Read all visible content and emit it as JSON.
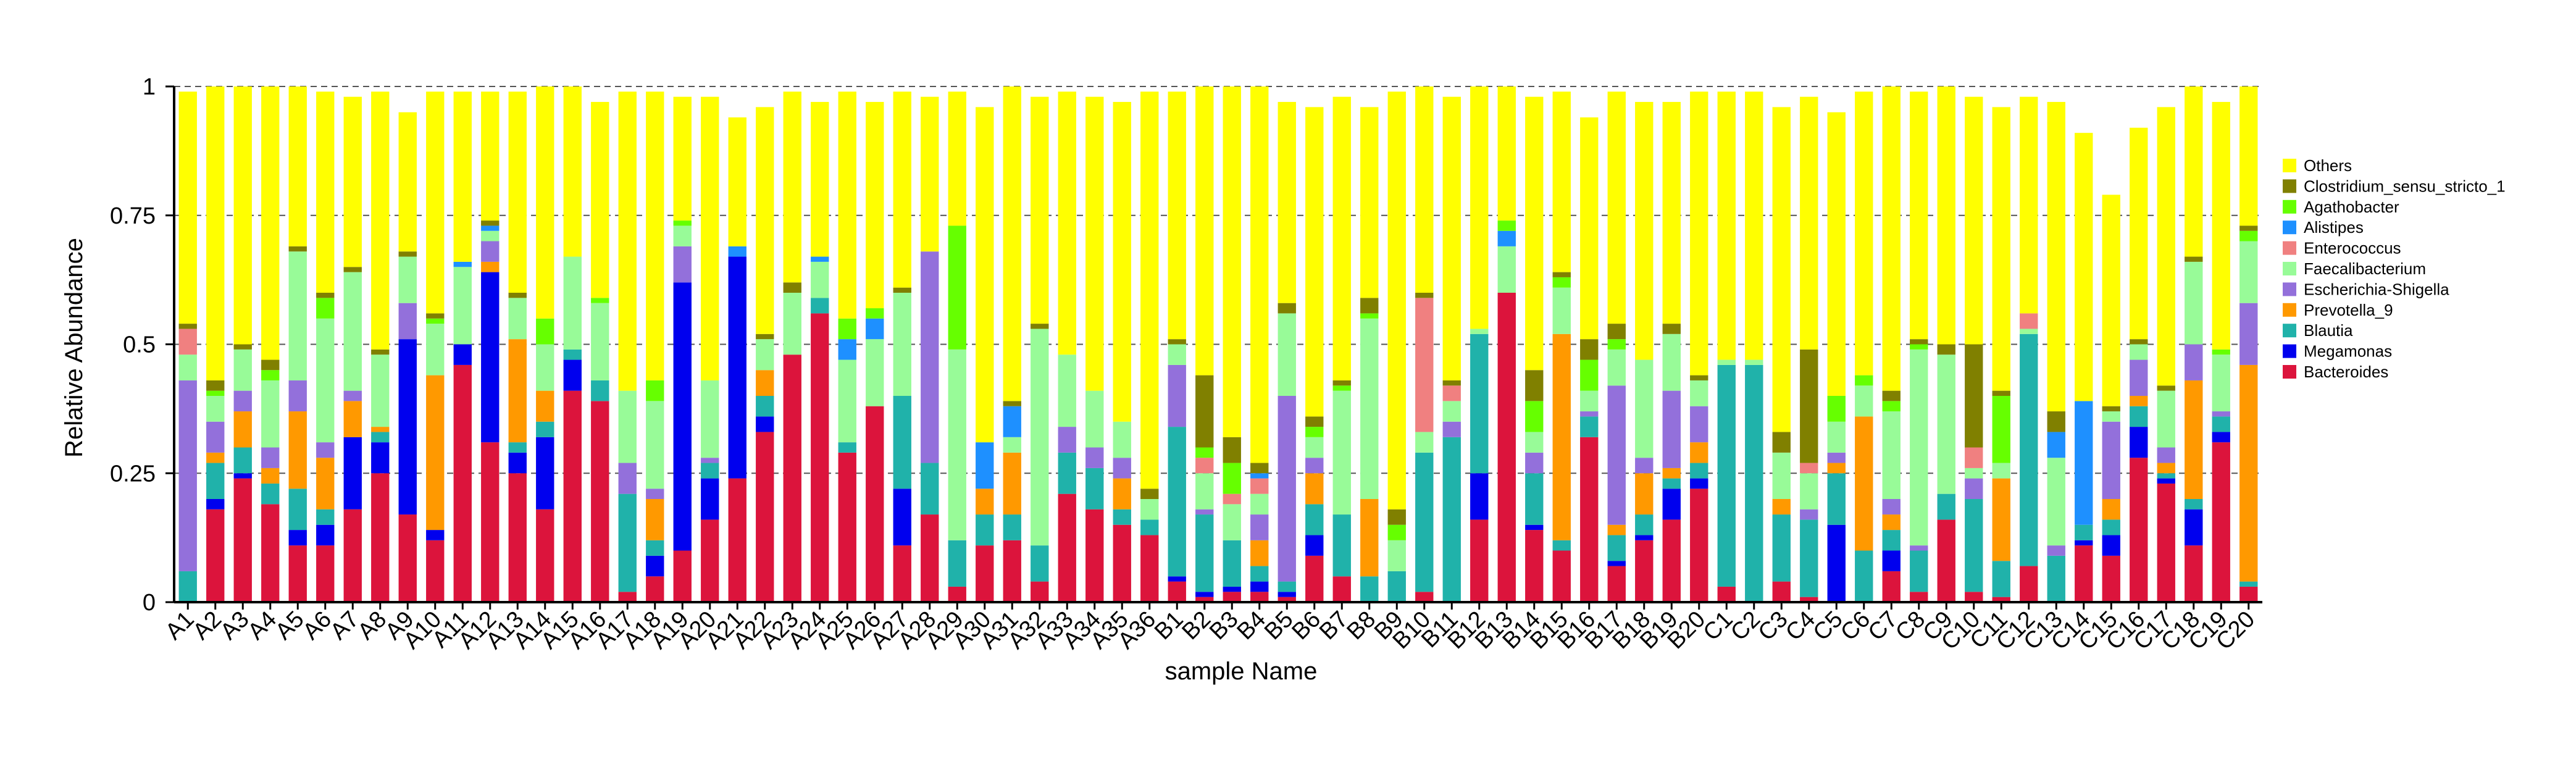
{
  "chart_data": {
    "type": "bar",
    "stacked": true,
    "title": "",
    "xlabel": "sample Name",
    "ylabel": "Relative Abundance",
    "ylim": [
      0,
      1
    ],
    "yticks": [
      "0",
      "0.25",
      "0.5",
      "0.75",
      "1"
    ],
    "grid": "horizontal dashed",
    "legend_position": "right",
    "categories": [
      "A1",
      "A2",
      "A3",
      "A4",
      "A5",
      "A6",
      "A7",
      "A8",
      "A9",
      "A10",
      "A11",
      "A12",
      "A13",
      "A14",
      "A15",
      "A16",
      "A17",
      "A18",
      "A19",
      "A20",
      "A21",
      "A22",
      "A23",
      "A24",
      "A25",
      "A26",
      "A27",
      "A28",
      "A29",
      "A30",
      "A31",
      "A32",
      "A33",
      "A34",
      "A35",
      "A36",
      "B1",
      "B2",
      "B3",
      "B4",
      "B5",
      "B6",
      "B7",
      "B8",
      "B9",
      "B10",
      "B11",
      "B12",
      "B13",
      "B14",
      "B15",
      "B16",
      "B17",
      "B18",
      "B19",
      "B20",
      "C1",
      "C2",
      "C3",
      "C4",
      "C5",
      "C6",
      "C7",
      "C8",
      "C9",
      "C10",
      "C11",
      "C12",
      "C13",
      "C14",
      "C15",
      "C16",
      "C17",
      "C18",
      "C19",
      "C20"
    ],
    "series": [
      {
        "name": "Bacteroides",
        "color": "#DC143C",
        "values": [
          0,
          0.18,
          0.24,
          0.19,
          0.11,
          0.11,
          0.18,
          0.25,
          0.17,
          0.12,
          0.46,
          0.31,
          0.25,
          0.18,
          0.41,
          0.39,
          0.02,
          0.05,
          0.1,
          0.16,
          0.24,
          0.33,
          0.48,
          0.56,
          0.29,
          0.38,
          0.11,
          0.17,
          0.03,
          0.11,
          0.12,
          0.04,
          0.21,
          0.18,
          0.15,
          0.13,
          0.04,
          0.01,
          0.02,
          0.02,
          0.01,
          0.09,
          0.05,
          0,
          0,
          0.02,
          0,
          0.16,
          0.6,
          0.14,
          0.1,
          0.32,
          0.07,
          0.12,
          0.16,
          0.22,
          0.03,
          0,
          0.04,
          0.01,
          0,
          0,
          0.06,
          0.02,
          0.16,
          0.02,
          0.01,
          0.07,
          0,
          0.11,
          0.09,
          0.28,
          0.23,
          0.11,
          0.31,
          0.03
        ]
      },
      {
        "name": "Megamonas",
        "color": "#0000EE",
        "values": [
          0,
          0.02,
          0.01,
          0,
          0.03,
          0.04,
          0.14,
          0.06,
          0.34,
          0.02,
          0.04,
          0.33,
          0.04,
          0.14,
          0.06,
          0,
          0,
          0.04,
          0.52,
          0.08,
          0.43,
          0.03,
          0,
          0,
          0,
          0,
          0.11,
          0,
          0,
          0,
          0,
          0,
          0,
          0,
          0,
          0,
          0.01,
          0.01,
          0.01,
          0.02,
          0.01,
          0.04,
          0,
          0,
          0,
          0,
          0,
          0.09,
          0,
          0.01,
          0,
          0,
          0.01,
          0.01,
          0.06,
          0.02,
          0,
          0,
          0,
          0,
          0.15,
          0,
          0.04,
          0,
          0,
          0,
          0,
          0,
          0,
          0.01,
          0.04,
          0.06,
          0.01,
          0.07,
          0.02,
          0
        ]
      },
      {
        "name": "Blautia",
        "color": "#20B2AA",
        "values": [
          0.06,
          0.07,
          0.05,
          0.04,
          0.08,
          0.03,
          0,
          0.02,
          0,
          0,
          0,
          0,
          0.02,
          0.03,
          0.02,
          0.04,
          0.19,
          0.03,
          0,
          0.03,
          0,
          0.04,
          0,
          0.03,
          0.02,
          0,
          0.18,
          0.1,
          0.09,
          0.06,
          0.05,
          0.07,
          0.08,
          0.08,
          0.03,
          0.03,
          0.29,
          0.15,
          0.09,
          0.03,
          0.02,
          0.06,
          0.12,
          0.05,
          0.06,
          0.27,
          0.32,
          0.27,
          0,
          0.1,
          0.02,
          0.04,
          0.05,
          0.04,
          0.02,
          0.03,
          0.43,
          0.46,
          0.13,
          0.15,
          0.1,
          0.1,
          0.04,
          0.08,
          0.05,
          0.18,
          0.07,
          0.45,
          0.09,
          0.03,
          0.03,
          0.04,
          0.01,
          0.02,
          0.03,
          0.01
        ]
      },
      {
        "name": "Prevotella_9",
        "color": "#FF9900",
        "values": [
          0,
          0.02,
          0.07,
          0.03,
          0.15,
          0.1,
          0.07,
          0.01,
          0,
          0.3,
          0,
          0.02,
          0.2,
          0.06,
          0,
          0,
          0,
          0.08,
          0,
          0,
          0,
          0.05,
          0,
          0,
          0,
          0,
          0,
          0,
          0,
          0.05,
          0.12,
          0,
          0,
          0,
          0.06,
          0,
          0,
          0,
          0,
          0.05,
          0,
          0.06,
          0,
          0.15,
          0,
          0,
          0,
          0,
          0,
          0,
          0.4,
          0,
          0.02,
          0.08,
          0.02,
          0.04,
          0,
          0,
          0.03,
          0,
          0.02,
          0.26,
          0.03,
          0,
          0,
          0,
          0.16,
          0,
          0,
          0,
          0.04,
          0.02,
          0.02,
          0.23,
          0,
          0.42
        ]
      },
      {
        "name": "Escherichia-Shigella",
        "color": "#9370DB",
        "values": [
          0.37,
          0.06,
          0.04,
          0.04,
          0.06,
          0.03,
          0.02,
          0,
          0.07,
          0,
          0,
          0.04,
          0,
          0,
          0,
          0,
          0.06,
          0.02,
          0.07,
          0.01,
          0,
          0,
          0,
          0,
          0,
          0,
          0,
          0.41,
          0,
          0,
          0,
          0,
          0.05,
          0.04,
          0.04,
          0,
          0.12,
          0.01,
          0,
          0.05,
          0.36,
          0.03,
          0,
          0,
          0,
          0,
          0.03,
          0,
          0,
          0.04,
          0,
          0.01,
          0.27,
          0.03,
          0.15,
          0.07,
          0,
          0,
          0,
          0.02,
          0.02,
          0,
          0.03,
          0.01,
          0,
          0.04,
          0,
          0,
          0.02,
          0,
          0.15,
          0.07,
          0.03,
          0.07,
          0.01,
          0.12
        ]
      },
      {
        "name": "Faecalibacterium",
        "color": "#98FB98",
        "values": [
          0.05,
          0.05,
          0.08,
          0.13,
          0.25,
          0.24,
          0.23,
          0.14,
          0.09,
          0.1,
          0.15,
          0.02,
          0.08,
          0.09,
          0.18,
          0.15,
          0.14,
          0.17,
          0.04,
          0.15,
          0,
          0.06,
          0.12,
          0.07,
          0.16,
          0.13,
          0.2,
          0,
          0.37,
          0,
          0.03,
          0.42,
          0.14,
          0.11,
          0.07,
          0.04,
          0.04,
          0.07,
          0.07,
          0.04,
          0.16,
          0.04,
          0.24,
          0.35,
          0.06,
          0.04,
          0.04,
          0.01,
          0.09,
          0.04,
          0.09,
          0.04,
          0.07,
          0.19,
          0.11,
          0.05,
          0.01,
          0.01,
          0.09,
          0.07,
          0.06,
          0.06,
          0.17,
          0.38,
          0.27,
          0.02,
          0.03,
          0.01,
          0.17,
          0,
          0.02,
          0.03,
          0.11,
          0.16,
          0.11,
          0.12
        ]
      },
      {
        "name": "Enterococcus",
        "color": "#F08080",
        "values": [
          0.05,
          0,
          0,
          0,
          0,
          0,
          0,
          0,
          0,
          0,
          0,
          0,
          0,
          0,
          0,
          0,
          0,
          0,
          0,
          0,
          0,
          0,
          0,
          0,
          0,
          0,
          0,
          0,
          0,
          0,
          0,
          0,
          0,
          0,
          0,
          0,
          0,
          0.03,
          0.02,
          0.03,
          0,
          0,
          0,
          0,
          0,
          0.26,
          0.03,
          0,
          0,
          0,
          0,
          0,
          0,
          0,
          0,
          0,
          0,
          0,
          0,
          0.02,
          0,
          0,
          0,
          0,
          0,
          0.04,
          0,
          0.03,
          0,
          0,
          0,
          0,
          0,
          0,
          0,
          0
        ]
      },
      {
        "name": "Alistipes",
        "color": "#1E90FF",
        "values": [
          0,
          0,
          0,
          0,
          0,
          0,
          0,
          0,
          0,
          0,
          0.01,
          0.01,
          0,
          0,
          0,
          0,
          0,
          0,
          0,
          0,
          0.02,
          0,
          0,
          0.01,
          0.04,
          0.04,
          0,
          0,
          0,
          0.09,
          0.06,
          0,
          0,
          0,
          0,
          0,
          0,
          0,
          0,
          0.01,
          0,
          0,
          0,
          0,
          0,
          0,
          0,
          0,
          0.03,
          0,
          0,
          0,
          0,
          0,
          0,
          0,
          0,
          0,
          0,
          0,
          0,
          0,
          0,
          0,
          0,
          0,
          0,
          0,
          0.05,
          0.24,
          0,
          0,
          0,
          0,
          0,
          0
        ]
      },
      {
        "name": "Agathobacter",
        "color": "#66FF00",
        "values": [
          0,
          0.01,
          0,
          0.02,
          0,
          0.04,
          0,
          0,
          0,
          0.01,
          0,
          0,
          0,
          0.05,
          0,
          0.01,
          0,
          0.04,
          0.01,
          0,
          0,
          0,
          0,
          0,
          0.04,
          0.02,
          0,
          0,
          0.24,
          0,
          0,
          0,
          0,
          0,
          0,
          0,
          0,
          0.02,
          0.06,
          0,
          0,
          0.02,
          0.01,
          0.01,
          0.03,
          0,
          0,
          0,
          0.02,
          0.06,
          0.02,
          0.06,
          0.02,
          0,
          0,
          0,
          0,
          0,
          0,
          0,
          0.05,
          0.02,
          0.02,
          0.01,
          0,
          0,
          0.13,
          0,
          0,
          0,
          0,
          0,
          0,
          0,
          0.01,
          0.02
        ]
      },
      {
        "name": "Clostridium_sensu_stricto_1",
        "color": "#808000",
        "values": [
          0.01,
          0.02,
          0.01,
          0.02,
          0.01,
          0.01,
          0.01,
          0.01,
          0.01,
          0.01,
          0,
          0.01,
          0.01,
          0,
          0,
          0,
          0,
          0,
          0,
          0,
          0,
          0.01,
          0.02,
          0,
          0,
          0,
          0.01,
          0,
          0,
          0,
          0.01,
          0.01,
          0,
          0,
          0,
          0.02,
          0.01,
          0.14,
          0.05,
          0.02,
          0.02,
          0.02,
          0.01,
          0.03,
          0.03,
          0.01,
          0.01,
          0,
          0,
          0.06,
          0.01,
          0.04,
          0.03,
          0,
          0.02,
          0.01,
          0,
          0,
          0.04,
          0.22,
          0,
          0,
          0.02,
          0.01,
          0.02,
          0.2,
          0.01,
          0,
          0.04,
          0,
          0.01,
          0.01,
          0.01,
          0.01,
          0,
          0.01
        ]
      },
      {
        "name": "Others",
        "color": "#FFFF00",
        "values": [
          0.45,
          0.57,
          0.5,
          0.53,
          0.38,
          0.39,
          0.33,
          0.5,
          0.27,
          0.43,
          0.33,
          0.25,
          0.39,
          0.45,
          0.33,
          0.38,
          0.58,
          0.56,
          0.24,
          0.55,
          0.25,
          0.44,
          0.37,
          0.3,
          0.44,
          0.4,
          0.38,
          0.3,
          0.26,
          0.65,
          0.65,
          0.44,
          0.51,
          0.57,
          0.62,
          0.77,
          0.48,
          0.57,
          0.68,
          0.73,
          0.39,
          0.6,
          0.55,
          0.37,
          0.81,
          0.4,
          0.55,
          0.47,
          0.26,
          0.53,
          0.35,
          0.43,
          0.45,
          0.5,
          0.43,
          0.55,
          0.52,
          0.52,
          0.63,
          0.49,
          0.55,
          0.55,
          0.62,
          0.48,
          0.5,
          0.48,
          0.55,
          0.42,
          0.6,
          0.52,
          0.41,
          0.41,
          0.54,
          0.38,
          0.48,
          0.27
        ]
      }
    ],
    "legend_order": [
      "Others",
      "Clostridium_sensu_stricto_1",
      "Agathobacter",
      "Alistipes",
      "Enterococcus",
      "Faecalibacterium",
      "Escherichia-Shigella",
      "Prevotella_9",
      "Blautia",
      "Megamonas",
      "Bacteroides"
    ]
  }
}
